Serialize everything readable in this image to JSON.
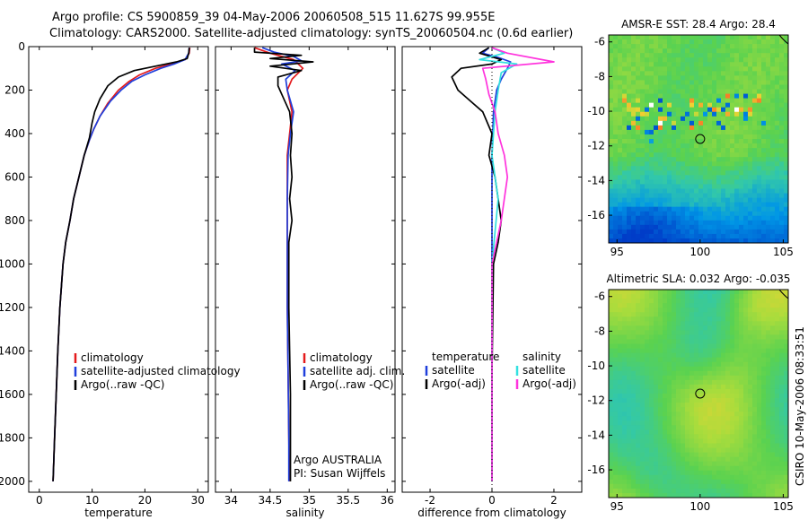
{
  "header": {
    "line1": "Argo profile: CS 5900859_39 04-May-2006 20060508_515 11.627S 99.955E",
    "line2": "Climatology: CARS2000. Satellite-adjusted climatology: synTS_20060504.nc (0.6d earlier)"
  },
  "colors": {
    "climatology": "#e41a1c",
    "satellite": "#1f3fdc",
    "argo": "#000000",
    "satellite_salinity": "#33e0e0",
    "argo_salinity": "#ff33dd"
  },
  "chart_data": [
    {
      "type": "line",
      "id": "temperature",
      "xlabel": "temperature",
      "xlim": [
        -2,
        32
      ],
      "ylim": [
        0,
        2050
      ],
      "xticks": [
        0,
        10,
        20,
        30
      ],
      "yticks": [
        0,
        200,
        400,
        600,
        800,
        1000,
        1200,
        1400,
        1600,
        1800,
        2000
      ],
      "legend": [
        "climatology",
        "satellite-adjusted climatology",
        "Argo(..raw -QC)"
      ],
      "series": [
        {
          "name": "climatology",
          "color": "#e41a1c",
          "points": [
            [
              28.5,
              5
            ],
            [
              28.4,
              30
            ],
            [
              27.6,
              60
            ],
            [
              25,
              80
            ],
            [
              22,
              100
            ],
            [
              19,
              130
            ],
            [
              17,
              160
            ],
            [
              15,
              200
            ],
            [
              13,
              260
            ],
            [
              11.5,
              320
            ],
            [
              10.3,
              380
            ],
            [
              9.5,
              430
            ],
            [
              8.5,
              500
            ],
            [
              7.5,
              600
            ],
            [
              6.5,
              700
            ],
            [
              5.8,
              800
            ],
            [
              5,
              900
            ],
            [
              4.5,
              1000
            ],
            [
              3.9,
              1200
            ],
            [
              3.5,
              1400
            ],
            [
              3.2,
              1600
            ],
            [
              2.9,
              1800
            ],
            [
              2.6,
              2000
            ]
          ]
        },
        {
          "name": "satellite",
          "color": "#1f3fdc",
          "points": [
            [
              28.4,
              5
            ],
            [
              28.3,
              30
            ],
            [
              27.6,
              60
            ],
            [
              25.5,
              80
            ],
            [
              23,
              100
            ],
            [
              20,
              130
            ],
            [
              17.5,
              160
            ],
            [
              15.5,
              200
            ],
            [
              13.5,
              250
            ],
            [
              11.5,
              320
            ],
            [
              10.3,
              380
            ],
            [
              9.5,
              430
            ],
            [
              8.5,
              500
            ],
            [
              7.5,
              600
            ],
            [
              6.5,
              700
            ],
            [
              5.8,
              800
            ],
            [
              5,
              900
            ],
            [
              4.5,
              1000
            ],
            [
              3.9,
              1200
            ],
            [
              3.5,
              1400
            ],
            [
              3.2,
              1600
            ],
            [
              2.9,
              1800
            ],
            [
              2.6,
              2000
            ]
          ]
        },
        {
          "name": "argo",
          "color": "#000000",
          "points": [
            [
              28.4,
              5
            ],
            [
              28.3,
              30
            ],
            [
              28,
              55
            ],
            [
              26,
              70
            ],
            [
              22,
              90
            ],
            [
              18,
              110
            ],
            [
              15,
              140
            ],
            [
              13,
              180
            ],
            [
              11.5,
              240
            ],
            [
              10.5,
              300
            ],
            [
              10,
              350
            ],
            [
              9.5,
              420
            ],
            [
              8.5,
              500
            ],
            [
              7.5,
              600
            ],
            [
              6.5,
              700
            ],
            [
              5.8,
              800
            ],
            [
              5,
              900
            ],
            [
              4.5,
              1000
            ],
            [
              3.9,
              1200
            ],
            [
              3.5,
              1400
            ],
            [
              3.2,
              1600
            ],
            [
              2.9,
              1800
            ],
            [
              2.6,
              2000
            ]
          ]
        }
      ]
    },
    {
      "type": "line",
      "id": "salinity",
      "xlabel": "salinity",
      "xlim": [
        33.8,
        36.1
      ],
      "ylim": [
        0,
        2050
      ],
      "xticks": [
        34,
        34.5,
        35,
        35.5,
        36
      ],
      "legend": [
        "climatology",
        "satellite adj. clim.",
        "Argo(..raw -QC)"
      ],
      "annotation": [
        "Argo AUSTRALIA",
        "PI: Susan Wijffels"
      ],
      "series": [
        {
          "name": "climatology",
          "color": "#e41a1c",
          "points": [
            [
              34.3,
              5
            ],
            [
              34.5,
              30
            ],
            [
              34.8,
              60
            ],
            [
              34.92,
              100
            ],
            [
              34.78,
              150
            ],
            [
              34.72,
              200
            ],
            [
              34.78,
              300
            ],
            [
              34.75,
              400
            ],
            [
              34.72,
              500
            ],
            [
              34.72,
              700
            ],
            [
              34.72,
              900
            ],
            [
              34.72,
              1200
            ],
            [
              34.73,
              1500
            ],
            [
              34.74,
              1800
            ],
            [
              34.75,
              2000
            ]
          ]
        },
        {
          "name": "satellite",
          "color": "#1f3fdc",
          "points": [
            [
              34.4,
              5
            ],
            [
              34.55,
              25
            ],
            [
              34.8,
              45
            ],
            [
              34.9,
              65
            ],
            [
              34.65,
              80
            ],
            [
              34.82,
              110
            ],
            [
              34.7,
              150
            ],
            [
              34.72,
              200
            ],
            [
              34.8,
              300
            ],
            [
              34.76,
              400
            ],
            [
              34.73,
              500
            ],
            [
              34.72,
              700
            ],
            [
              34.72,
              900
            ],
            [
              34.72,
              1200
            ],
            [
              34.73,
              1500
            ],
            [
              34.74,
              1800
            ],
            [
              34.74,
              2000
            ]
          ]
        },
        {
          "name": "argo",
          "color": "#000000",
          "points": [
            [
              34.3,
              5
            ],
            [
              34.3,
              25
            ],
            [
              34.9,
              40
            ],
            [
              34.5,
              55
            ],
            [
              35.05,
              70
            ],
            [
              34.5,
              90
            ],
            [
              34.9,
              110
            ],
            [
              34.6,
              140
            ],
            [
              34.6,
              180
            ],
            [
              34.65,
              220
            ],
            [
              34.75,
              300
            ],
            [
              34.78,
              400
            ],
            [
              34.76,
              500
            ],
            [
              34.78,
              600
            ],
            [
              34.75,
              700
            ],
            [
              34.78,
              800
            ],
            [
              34.74,
              900
            ],
            [
              34.74,
              1000
            ],
            [
              34.74,
              1200
            ],
            [
              34.75,
              1400
            ],
            [
              34.76,
              1600
            ],
            [
              34.76,
              1800
            ],
            [
              34.76,
              2000
            ]
          ]
        }
      ]
    },
    {
      "type": "line",
      "id": "difference",
      "xlabel": "difference from climatology",
      "xlim": [
        -2.9,
        2.9
      ],
      "ylim": [
        0,
        2050
      ],
      "xticks": [
        -2,
        0,
        2
      ],
      "legend_titles": [
        "temperature",
        "salinity"
      ],
      "legend_left": [
        "satellite",
        "Argo(-adj)"
      ],
      "legend_right": [
        "satellite",
        "Argo(-adj)"
      ],
      "series": [
        {
          "name": "temperature satellite",
          "color": "#1f3fdc",
          "points": [
            [
              -0.1,
              5
            ],
            [
              -0.3,
              30
            ],
            [
              0.2,
              50
            ],
            [
              0.6,
              70
            ],
            [
              0.5,
              100
            ],
            [
              0.3,
              150
            ],
            [
              0.15,
              200
            ],
            [
              0.05,
              300
            ],
            [
              0,
              500
            ],
            [
              0,
              1000
            ],
            [
              0,
              1500
            ],
            [
              0,
              2000
            ]
          ]
        },
        {
          "name": "temperature Argo(-adj)",
          "color": "#000000",
          "points": [
            [
              -0.1,
              5
            ],
            [
              -0.4,
              30
            ],
            [
              0.3,
              60
            ],
            [
              0,
              80
            ],
            [
              -1,
              100
            ],
            [
              -1.3,
              140
            ],
            [
              -1.1,
              200
            ],
            [
              -0.7,
              250
            ],
            [
              -0.3,
              300
            ],
            [
              0,
              400
            ],
            [
              -0.1,
              500
            ],
            [
              0.1,
              600
            ],
            [
              0.3,
              800
            ],
            [
              0.2,
              900
            ],
            [
              0.05,
              1000
            ],
            [
              0,
              1500
            ],
            [
              0,
              2000
            ]
          ]
        },
        {
          "name": "salinity satellite",
          "color": "#33e0e0",
          "points": [
            [
              0,
              5
            ],
            [
              0.4,
              30
            ],
            [
              -0.4,
              60
            ],
            [
              0.8,
              80
            ],
            [
              0.3,
              120
            ],
            [
              0.2,
              200
            ],
            [
              0.1,
              300
            ],
            [
              0,
              500
            ],
            [
              0.2,
              700
            ],
            [
              0,
              1000
            ],
            [
              0,
              1500
            ],
            [
              0,
              2000
            ]
          ]
        },
        {
          "name": "salinity Argo(-adj)",
          "color": "#ff33dd",
          "points": [
            [
              0,
              5
            ],
            [
              0.5,
              30
            ],
            [
              2,
              70
            ],
            [
              -0.3,
              100
            ],
            [
              -0.2,
              150
            ],
            [
              -0.1,
              220
            ],
            [
              0.1,
              300
            ],
            [
              0.2,
              400
            ],
            [
              0.4,
              500
            ],
            [
              0.5,
              600
            ],
            [
              0.3,
              800
            ],
            [
              0,
              1000
            ],
            [
              0,
              1500
            ],
            [
              0,
              2000
            ]
          ]
        }
      ]
    },
    {
      "type": "heatmap",
      "id": "sst_map",
      "title": "AMSR-E SST: 28.4  Argo: 28.4",
      "xlim": [
        94.5,
        105.3
      ],
      "ylim": [
        -17.6,
        -5.6
      ],
      "xticks": [
        95,
        100,
        105
      ],
      "yticks": [
        -6,
        -8,
        -10,
        -12,
        -14,
        -16
      ],
      "marker": [
        100,
        -11.6
      ]
    },
    {
      "type": "heatmap",
      "id": "sla_map",
      "title": "Altimetric SLA: 0.032  Argo: -0.035",
      "xlim": [
        94.5,
        105.3
      ],
      "ylim": [
        -17.6,
        -5.6
      ],
      "xticks": [
        95,
        100,
        105
      ],
      "yticks": [
        -6,
        -8,
        -10,
        -12,
        -14,
        -16
      ],
      "marker": [
        100,
        -11.6
      ]
    }
  ],
  "footer": {
    "credit": "CSIRO 10-May-2006 08:33:51"
  }
}
